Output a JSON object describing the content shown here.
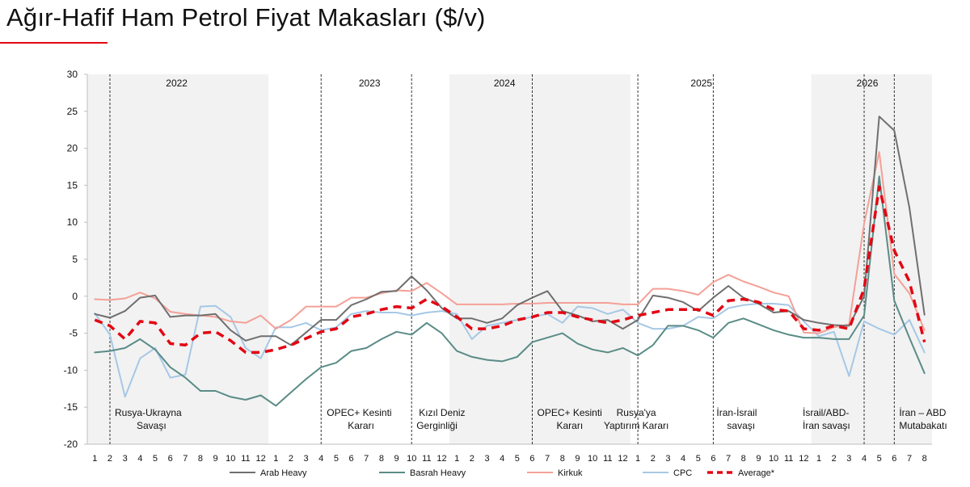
{
  "page": {
    "title": "Ağır-Hafif Ham Petrol Fiyat Makasları ($/v)",
    "accent_color": "#e30613"
  },
  "chart_data": {
    "type": "line",
    "title": "Ağır-Hafif Ham Petrol Fiyat Makasları ($/v)",
    "xlabel": "",
    "ylabel": "",
    "ylim": [
      -20,
      30
    ],
    "yticks": [
      30,
      25,
      20,
      15,
      10,
      5,
      0,
      -5,
      -10,
      -15,
      -20
    ],
    "grid": false,
    "legend_position": "bottom",
    "x_labels": [
      "1",
      "2",
      "3",
      "4",
      "5",
      "6",
      "7",
      "8",
      "9",
      "10",
      "11",
      "12",
      "1",
      "2",
      "3",
      "4",
      "5",
      "6",
      "7",
      "8",
      "9",
      "10",
      "11",
      "12",
      "1",
      "2",
      "3",
      "4",
      "5",
      "6",
      "7",
      "8",
      "9",
      "10",
      "11",
      "12",
      "1",
      "2",
      "3",
      "4",
      "5",
      "6",
      "7",
      "8",
      "9",
      "10",
      "11",
      "12",
      "1",
      "2",
      "3",
      "4",
      "5",
      "6",
      "7",
      "8"
    ],
    "year_labels": [
      {
        "label": "2022",
        "start_index": 0,
        "end_index": 11
      },
      {
        "label": "2023",
        "start_index": 12,
        "end_index": 23
      },
      {
        "label": "2024",
        "start_index": 24,
        "end_index": 35
      },
      {
        "label": "2025",
        "start_index": 36,
        "end_index": 47
      },
      {
        "label": "2026",
        "start_index": 48,
        "end_index": 55
      }
    ],
    "events": [
      {
        "line1": "Rusya-Ukrayna",
        "line2": "Savaşı",
        "index": 1
      },
      {
        "line1": "OPEC+ Kesinti",
        "line2": "Kararı",
        "index": 15
      },
      {
        "line1": "Kızıl Deniz",
        "line2": "Gerginliği",
        "index": 21
      },
      {
        "line1": "OPEC+ Kesinti",
        "line2": "Kararı",
        "index": 29
      },
      {
        "line1": "Rusya'ya",
        "line2": "Yaptırım Kararı",
        "index": 36
      },
      {
        "line1": "İran-İsrail",
        "line2": "savaşı",
        "index": 41
      },
      {
        "line1": "İsrail/ABD-",
        "line2": "İran savaşı",
        "index": 51
      },
      {
        "line1": "İran – ABD",
        "line2": "Mutabakatı",
        "index": 53
      }
    ],
    "series": [
      {
        "name": "Arab Heavy",
        "color": "#6f6f6f",
        "style": "solid",
        "values": [
          -2.4,
          -2.9,
          -2.0,
          -0.2,
          0.1,
          -2.8,
          -2.6,
          -2.6,
          -2.4,
          -4.6,
          -6.0,
          -5.4,
          -5.4,
          -6.6,
          null,
          -3.2,
          -3.2,
          -1.2,
          -0.4,
          0.6,
          0.7,
          2.7,
          0.8,
          -1.6,
          -3.0,
          -3.0,
          -3.6,
          -3.0,
          -1.2,
          -0.2,
          0.7,
          -2.0,
          -2.6,
          -3.4,
          -3.2,
          -4.4,
          -3.2,
          0.1,
          -0.2,
          -0.8,
          -2.0,
          -0.2,
          1.4,
          -0.2,
          -1.0,
          -2.2,
          -2.0,
          -3.2,
          -3.6,
          -3.9,
          -4.0,
          0.0,
          24.3,
          22.4,
          12.0,
          -2.5
        ]
      },
      {
        "name": "Basrah Heavy",
        "color": "#5a8c86",
        "style": "solid",
        "values": [
          -7.6,
          -7.4,
          -7.0,
          -5.8,
          -7.2,
          -9.6,
          -11.0,
          -12.8,
          -12.8,
          -13.6,
          -14.0,
          -13.4,
          -14.8,
          -13.0,
          -11.2,
          -9.6,
          -9.0,
          -7.4,
          -7.0,
          -5.8,
          -4.8,
          -5.2,
          -3.6,
          -5.0,
          -7.4,
          -8.2,
          -8.6,
          -8.8,
          -8.2,
          -6.2,
          -5.6,
          -5.0,
          -6.4,
          -7.2,
          -7.6,
          -7.0,
          -8.0,
          -6.6,
          -4.0,
          -4.0,
          -4.6,
          -5.6,
          -3.6,
          -3.0,
          -3.8,
          -4.6,
          -5.2,
          -5.6,
          -5.6,
          -5.8,
          -5.8,
          -2.6,
          16.2,
          -0.6,
          -5.6,
          -10.4
        ]
      },
      {
        "name": "Kirkuk",
        "color": "#f4a097",
        "style": "solid",
        "values": [
          -0.4,
          -0.5,
          -0.3,
          0.5,
          -0.3,
          -2.1,
          -2.4,
          -2.6,
          -2.8,
          -3.4,
          -3.6,
          -2.6,
          -4.4,
          -3.2,
          -1.4,
          -1.4,
          -1.4,
          -0.2,
          -0.2,
          0.4,
          0.8,
          0.7,
          1.8,
          0.4,
          -1.1,
          -1.1,
          -1.1,
          -1.1,
          -1.0,
          -1.0,
          -0.9,
          -0.9,
          -0.9,
          -0.9,
          -0.9,
          -1.1,
          -1.1,
          1.0,
          1.0,
          0.7,
          0.2,
          1.9,
          2.9,
          2.0,
          1.3,
          0.5,
          0.0,
          -4.9,
          -5.0,
          -4.2,
          -3.8,
          9.8,
          19.5,
          3.0,
          0.4,
          -4.6
        ]
      },
      {
        "name": "CPC",
        "color": "#a6c8e6",
        "style": "solid",
        "values": [
          -2.3,
          -5.2,
          -13.6,
          -8.4,
          -7.0,
          -11.0,
          -10.6,
          -1.4,
          -1.3,
          -2.8,
          -7.0,
          -8.4,
          -4.2,
          -4.2,
          -3.6,
          -4.6,
          -4.2,
          -2.4,
          -2.0,
          -2.2,
          -2.2,
          -2.6,
          -2.2,
          -2.0,
          -2.4,
          -5.8,
          -4.0,
          -3.6,
          -3.2,
          -2.8,
          -2.4,
          -3.6,
          -1.4,
          -1.6,
          -2.4,
          -1.8,
          -3.6,
          -4.4,
          -4.4,
          -4.0,
          -2.8,
          -3.0,
          -1.6,
          -1.2,
          -1.0,
          -1.0,
          -1.2,
          -3.4,
          -5.4,
          -4.8,
          -10.8,
          -3.4,
          -4.4,
          -5.2,
          -3.2,
          -7.6
        ]
      },
      {
        "name": "Average*",
        "color": "#e30613",
        "style": "dashed",
        "values": [
          -3.2,
          -4.0,
          -5.8,
          -3.4,
          -3.6,
          -6.4,
          -6.6,
          -5.0,
          -4.8,
          -6.0,
          -7.6,
          -7.6,
          -7.2,
          -6.6,
          null,
          -4.8,
          -4.4,
          -2.8,
          -2.4,
          -1.8,
          -1.4,
          -1.6,
          -0.4,
          -1.4,
          -2.8,
          -4.4,
          -4.4,
          -4.0,
          -3.2,
          -2.8,
          -2.2,
          -2.2,
          -2.8,
          -3.2,
          -3.6,
          -3.2,
          -2.6,
          -2.2,
          -1.8,
          -1.8,
          -1.8,
          -2.6,
          -0.6,
          -0.4,
          -0.8,
          -1.8,
          -2.0,
          -4.4,
          -4.6,
          -4.0,
          -4.4,
          1.0,
          14.8,
          6.2,
          2.0,
          -6.2
        ]
      }
    ]
  }
}
